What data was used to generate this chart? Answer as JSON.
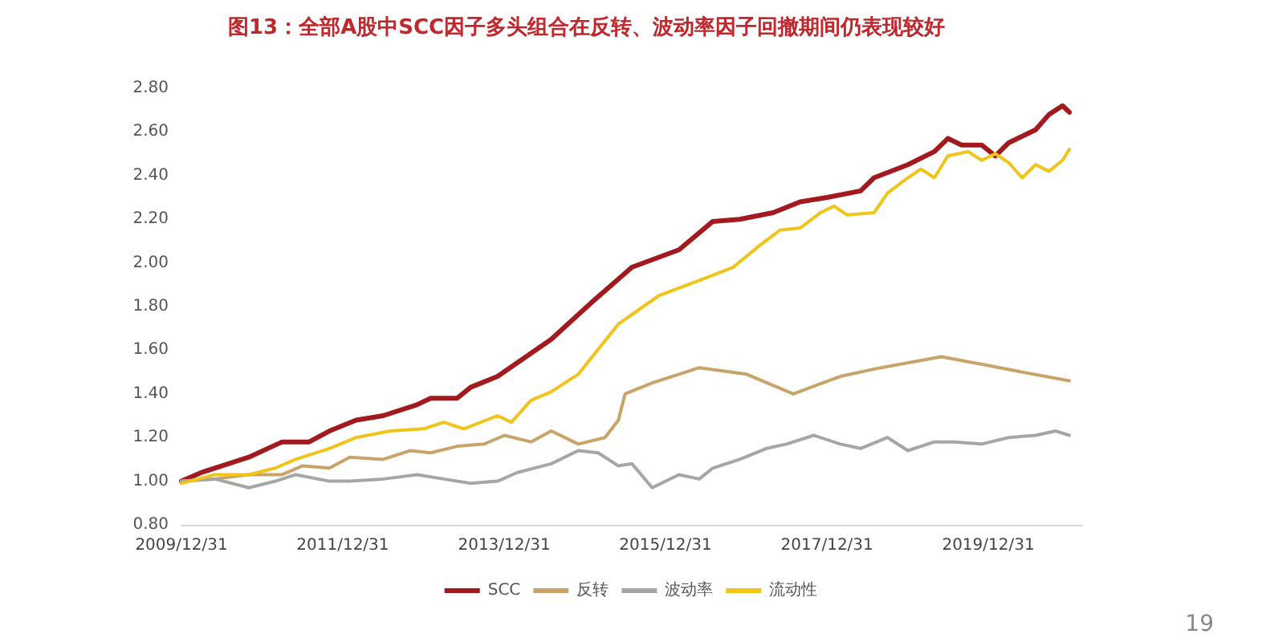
{
  "chart_data": {
    "type": "line",
    "title": "图13：全部A股中SCC因子多头组合在反转、波动率因子回撤期间仍表现较好",
    "xlim": [
      "2009-12-31",
      "2021-02-28"
    ],
    "xticks": [
      {
        "value": "2009-12-31",
        "label": "2009/12/31"
      },
      {
        "value": "2011-12-31",
        "label": "2011/12/31"
      },
      {
        "value": "2013-12-31",
        "label": "2013/12/31"
      },
      {
        "value": "2015-12-31",
        "label": "2015/12/31"
      },
      {
        "value": "2017-12-31",
        "label": "2017/12/31"
      },
      {
        "value": "2019-12-31",
        "label": "2019/12/31"
      }
    ],
    "ylim": [
      0.8,
      2.8
    ],
    "yticks": [
      {
        "value": 0.8,
        "label": "0.80"
      },
      {
        "value": 1.0,
        "label": "1.00"
      },
      {
        "value": 1.2,
        "label": "1.20"
      },
      {
        "value": 1.4,
        "label": "1.40"
      },
      {
        "value": 1.6,
        "label": "1.60"
      },
      {
        "value": 1.8,
        "label": "1.80"
      },
      {
        "value": 2.0,
        "label": "2.00"
      },
      {
        "value": 2.2,
        "label": "2.20"
      },
      {
        "value": 2.4,
        "label": "2.40"
      },
      {
        "value": 2.6,
        "label": "2.60"
      },
      {
        "value": 2.8,
        "label": "2.80"
      }
    ],
    "grid": false,
    "legend": "bottom",
    "marker": "none",
    "line_style": "solid",
    "annotations": [
      "19"
    ],
    "series": [
      {
        "name": "SCC",
        "color": "#a31a1e",
        "x": [
          "2009-12-31",
          "2010-04",
          "2010-07",
          "2010-11",
          "2011-04",
          "2011-08",
          "2011-11",
          "2012-03",
          "2012-07",
          "2012-12",
          "2013-02",
          "2013-06",
          "2013-08",
          "2013-12",
          "2014-08",
          "2015-02",
          "2015-08",
          "2016-03",
          "2016-08",
          "2016-12",
          "2017-05",
          "2017-09",
          "2018-01",
          "2018-06",
          "2018-08",
          "2019-01",
          "2019-05",
          "2019-07",
          "2019-09",
          "2019-12",
          "2020-02",
          "2020-04",
          "2020-08",
          "2020-10",
          "2020-12",
          "2021-01"
        ],
        "values": [
          1.0,
          1.04,
          1.07,
          1.11,
          1.18,
          1.18,
          1.23,
          1.28,
          1.3,
          1.35,
          1.38,
          1.38,
          1.43,
          1.48,
          1.65,
          1.82,
          1.98,
          2.06,
          2.19,
          2.2,
          2.23,
          2.28,
          2.3,
          2.33,
          2.39,
          2.45,
          2.51,
          2.57,
          2.54,
          2.54,
          2.49,
          2.55,
          2.61,
          2.68,
          2.72,
          2.69
        ]
      },
      {
        "name": "反转",
        "color": "#c8a46a",
        "x": [
          "2009-12-31",
          "2010-06",
          "2010-11",
          "2011-04",
          "2011-07",
          "2011-11",
          "2012-02",
          "2012-07",
          "2012-11",
          "2013-02",
          "2013-06",
          "2013-10",
          "2014-01",
          "2014-05",
          "2014-08",
          "2014-12",
          "2015-04",
          "2015-06",
          "2015-07",
          "2015-11",
          "2016-03",
          "2016-06",
          "2017-01",
          "2017-08",
          "2018-03",
          "2018-09",
          "2019-06",
          "2020-01",
          "2020-06",
          "2021-01"
        ],
        "values": [
          1.0,
          1.01,
          1.03,
          1.03,
          1.07,
          1.06,
          1.11,
          1.1,
          1.14,
          1.13,
          1.16,
          1.17,
          1.21,
          1.18,
          1.23,
          1.17,
          1.2,
          1.28,
          1.4,
          1.45,
          1.49,
          1.52,
          1.49,
          1.4,
          1.48,
          1.52,
          1.57,
          1.53,
          1.5,
          1.46
        ]
      },
      {
        "name": "波动率",
        "color": "#a6a6a6",
        "x": [
          "2009-12-31",
          "2010-06",
          "2010-11",
          "2011-03",
          "2011-06",
          "2011-11",
          "2012-02",
          "2012-07",
          "2012-12",
          "2013-04",
          "2013-08",
          "2013-12",
          "2014-03",
          "2014-08",
          "2014-12",
          "2015-03",
          "2015-06",
          "2015-08",
          "2015-11",
          "2016-03",
          "2016-06",
          "2016-08",
          "2016-12",
          "2017-04",
          "2017-07",
          "2017-11",
          "2018-03",
          "2018-06",
          "2018-10",
          "2019-01",
          "2019-05",
          "2019-08",
          "2019-12",
          "2020-04",
          "2020-08",
          "2020-11",
          "2021-01"
        ],
        "values": [
          1.0,
          1.01,
          0.97,
          1.0,
          1.03,
          1.0,
          1.0,
          1.01,
          1.03,
          1.01,
          0.99,
          1.0,
          1.04,
          1.08,
          1.14,
          1.13,
          1.07,
          1.08,
          0.97,
          1.03,
          1.01,
          1.06,
          1.1,
          1.15,
          1.17,
          1.21,
          1.17,
          1.15,
          1.2,
          1.14,
          1.18,
          1.18,
          1.17,
          1.2,
          1.21,
          1.23,
          1.21
        ]
      },
      {
        "name": "流动性",
        "color": "#f0c419",
        "x": [
          "2009-12-31",
          "2010-06",
          "2010-11",
          "2011-03",
          "2011-06",
          "2011-11",
          "2012-03",
          "2012-08",
          "2013-01",
          "2013-04",
          "2013-07",
          "2013-12",
          "2014-02",
          "2014-05",
          "2014-08",
          "2014-12",
          "2015-06",
          "2015-12",
          "2016-06",
          "2016-11",
          "2017-03",
          "2017-06",
          "2017-09",
          "2017-12",
          "2018-02",
          "2018-04",
          "2018-08",
          "2018-10",
          "2019-01",
          "2019-03",
          "2019-05",
          "2019-07",
          "2019-10",
          "2019-12",
          "2020-02",
          "2020-04",
          "2020-06",
          "2020-08",
          "2020-10",
          "2020-12",
          "2021-01"
        ],
        "values": [
          0.99,
          1.03,
          1.03,
          1.06,
          1.1,
          1.15,
          1.2,
          1.23,
          1.24,
          1.27,
          1.24,
          1.3,
          1.27,
          1.37,
          1.41,
          1.49,
          1.72,
          1.85,
          1.92,
          1.98,
          2.08,
          2.15,
          2.16,
          2.23,
          2.26,
          2.22,
          2.23,
          2.32,
          2.39,
          2.43,
          2.39,
          2.49,
          2.51,
          2.47,
          2.5,
          2.46,
          2.39,
          2.45,
          2.42,
          2.47,
          2.52
        ]
      }
    ]
  }
}
